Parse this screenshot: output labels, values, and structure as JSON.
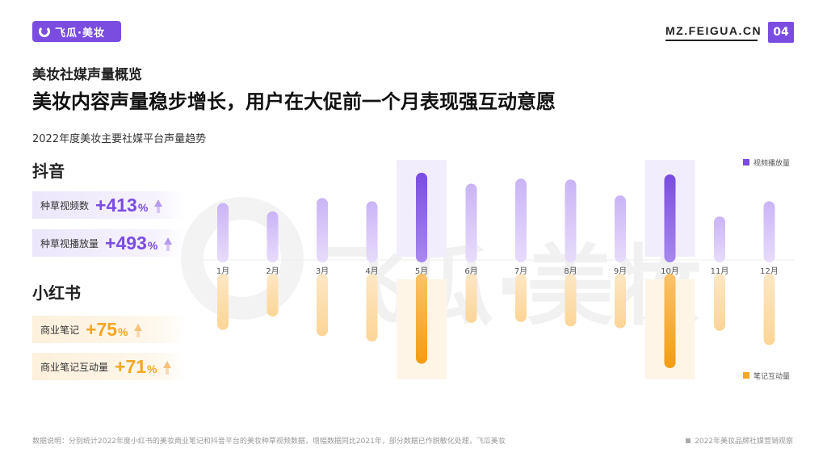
{
  "brand": {
    "logo_text": "飞瓜·美妆",
    "site": "MZ.FEIGUA.CN",
    "page_number": "04",
    "watermark": "飞瓜·美妆"
  },
  "header": {
    "section": "美妆社媒声量概览",
    "headline": "美妆内容声量稳步增长，用户在大促前一个月表现强互动意愿"
  },
  "colors": {
    "purple": "#7a4ce0",
    "purple_light": "#c9b4f6",
    "orange": "#f5a623",
    "orange_light": "#fcd596"
  },
  "platforms": [
    {
      "name": "抖音",
      "stats": [
        {
          "label": "种草视频数",
          "value": "+413",
          "unit": "%"
        },
        {
          "label": "种草视播放量",
          "value": "+493",
          "unit": "%"
        }
      ]
    },
    {
      "name": "小红书",
      "stats": [
        {
          "label": "商业笔记",
          "value": "+75",
          "unit": "%"
        },
        {
          "label": "商业笔记互动量",
          "value": "+71",
          "unit": "%"
        }
      ]
    }
  ],
  "chart_data": {
    "type": "bar",
    "title": "2022年度美妆主要社媒平台声量趋势",
    "categories": [
      "1月",
      "2月",
      "3月",
      "4月",
      "5月",
      "6月",
      "7月",
      "8月",
      "9月",
      "10月",
      "11月",
      "12月"
    ],
    "series": [
      {
        "name": "视频播放量",
        "direction": "up",
        "values": [
          0.64,
          0.54,
          0.7,
          0.66,
          1.0,
          0.87,
          0.93,
          0.92,
          0.73,
          0.98,
          0.48,
          0.66
        ]
      },
      {
        "name": "笔记互动量",
        "direction": "down",
        "values": [
          0.57,
          0.42,
          0.64,
          0.7,
          0.95,
          0.49,
          0.48,
          0.53,
          0.55,
          1.0,
          0.58,
          0.74
        ]
      }
    ],
    "highlighted": [
      "5月",
      "10月"
    ],
    "legend_position": "right"
  },
  "footer": {
    "note": "数据说明：分别统计2022年度小红书的美妆商业笔记和抖音平台的美妆种草视频数据，增幅数据同比2021年，部分数据已作脱敏化处理，飞瓜美妆",
    "report": "2022年美妆品牌社媒营销观察"
  }
}
